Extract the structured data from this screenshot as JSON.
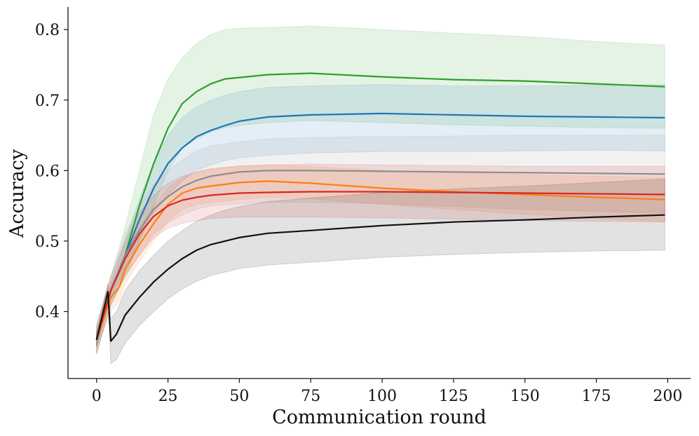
{
  "chart_data": {
    "type": "line",
    "title": "",
    "xlabel": "Communication round",
    "ylabel": "Accuracy",
    "xlim": [
      -10,
      208
    ],
    "ylim": [
      0.305,
      0.832
    ],
    "xticks": [
      0,
      25,
      50,
      75,
      100,
      125,
      150,
      175,
      200
    ],
    "yticks": [
      0.4,
      0.5,
      0.6,
      0.7,
      0.8
    ],
    "x_tick_labels": [
      "0",
      "25",
      "50",
      "75",
      "100",
      "125",
      "150",
      "175",
      "200"
    ],
    "y_tick_labels": [
      "0.4",
      "0.5",
      "0.6",
      "0.7",
      "0.8"
    ],
    "grid": false,
    "legend": "none",
    "series": [
      {
        "name": "green",
        "color": "#2ca02c",
        "x": [
          0,
          5,
          10,
          15,
          20,
          25,
          30,
          35,
          40,
          45,
          50,
          60,
          75,
          100,
          125,
          150,
          175,
          199
        ],
        "mean": [
          0.36,
          0.43,
          0.48,
          0.55,
          0.61,
          0.66,
          0.695,
          0.712,
          0.723,
          0.73,
          0.732,
          0.736,
          0.738,
          0.733,
          0.729,
          0.727,
          0.723,
          0.719
        ],
        "upper": [
          0.38,
          0.45,
          0.52,
          0.6,
          0.68,
          0.73,
          0.76,
          0.78,
          0.793,
          0.8,
          0.802,
          0.803,
          0.805,
          0.8,
          0.795,
          0.79,
          0.783,
          0.778
        ],
        "lower": [
          0.34,
          0.41,
          0.45,
          0.5,
          0.55,
          0.6,
          0.632,
          0.645,
          0.655,
          0.661,
          0.664,
          0.668,
          0.671,
          0.668,
          0.665,
          0.663,
          0.661,
          0.66
        ]
      },
      {
        "name": "blue",
        "color": "#1f77b4",
        "x": [
          0,
          5,
          10,
          15,
          20,
          25,
          30,
          35,
          40,
          45,
          50,
          60,
          75,
          100,
          125,
          150,
          175,
          199
        ],
        "mean": [
          0.36,
          0.43,
          0.48,
          0.53,
          0.575,
          0.61,
          0.632,
          0.648,
          0.657,
          0.664,
          0.67,
          0.676,
          0.679,
          0.681,
          0.679,
          0.677,
          0.676,
          0.675
        ],
        "upper": [
          0.37,
          0.44,
          0.5,
          0.56,
          0.61,
          0.65,
          0.675,
          0.69,
          0.7,
          0.707,
          0.712,
          0.718,
          0.72,
          0.722,
          0.72,
          0.72,
          0.721,
          0.722
        ],
        "lower": [
          0.35,
          0.42,
          0.46,
          0.5,
          0.54,
          0.565,
          0.585,
          0.6,
          0.608,
          0.614,
          0.618,
          0.622,
          0.625,
          0.627,
          0.627,
          0.628,
          0.629,
          0.628
        ]
      },
      {
        "name": "gray",
        "color": "#8c8c8c",
        "x": [
          0,
          5,
          10,
          15,
          20,
          25,
          30,
          35,
          40,
          50,
          60,
          75,
          100,
          125,
          150,
          175,
          199
        ],
        "mean": [
          0.36,
          0.43,
          0.48,
          0.515,
          0.545,
          0.563,
          0.577,
          0.586,
          0.592,
          0.598,
          0.6,
          0.6,
          0.599,
          0.598,
          0.597,
          0.596,
          0.595
        ],
        "upper": [
          0.38,
          0.45,
          0.51,
          0.55,
          0.58,
          0.6,
          0.615,
          0.628,
          0.635,
          0.641,
          0.645,
          0.647,
          0.648,
          0.649,
          0.65,
          0.65,
          0.65
        ],
        "lower": [
          0.34,
          0.41,
          0.45,
          0.48,
          0.51,
          0.525,
          0.537,
          0.545,
          0.55,
          0.553,
          0.555,
          0.555,
          0.553,
          0.549,
          0.545,
          0.542,
          0.54
        ]
      },
      {
        "name": "orange",
        "color": "#ff7f0e",
        "x": [
          0,
          5,
          8,
          10,
          15,
          20,
          25,
          30,
          35,
          40,
          50,
          60,
          75,
          100,
          125,
          150,
          175,
          199
        ],
        "mean": [
          0.36,
          0.42,
          0.435,
          0.46,
          0.495,
          0.525,
          0.552,
          0.568,
          0.575,
          0.578,
          0.583,
          0.585,
          0.582,
          0.575,
          0.57,
          0.566,
          0.562,
          0.559
        ],
        "upper": [
          0.37,
          0.44,
          0.455,
          0.48,
          0.52,
          0.55,
          0.575,
          0.59,
          0.598,
          0.603,
          0.607,
          0.608,
          0.606,
          0.6,
          0.597,
          0.594,
          0.592,
          0.59
        ],
        "lower": [
          0.35,
          0.4,
          0.415,
          0.44,
          0.47,
          0.5,
          0.528,
          0.545,
          0.552,
          0.555,
          0.559,
          0.562,
          0.56,
          0.552,
          0.545,
          0.538,
          0.532,
          0.528
        ]
      },
      {
        "name": "red",
        "color": "#d62728",
        "x": [
          0,
          5,
          10,
          15,
          20,
          25,
          30,
          35,
          40,
          50,
          60,
          75,
          100,
          125,
          150,
          175,
          199
        ],
        "mean": [
          0.36,
          0.43,
          0.475,
          0.51,
          0.535,
          0.55,
          0.558,
          0.562,
          0.565,
          0.568,
          0.569,
          0.57,
          0.57,
          0.569,
          0.568,
          0.567,
          0.566
        ],
        "upper": [
          0.38,
          0.45,
          0.5,
          0.54,
          0.565,
          0.582,
          0.592,
          0.598,
          0.602,
          0.606,
          0.608,
          0.609,
          0.608,
          0.607,
          0.606,
          0.606,
          0.606
        ],
        "lower": [
          0.34,
          0.41,
          0.45,
          0.48,
          0.505,
          0.518,
          0.525,
          0.529,
          0.532,
          0.534,
          0.534,
          0.534,
          0.533,
          0.531,
          0.529,
          0.528,
          0.527
        ]
      },
      {
        "name": "black",
        "color": "#111111",
        "x": [
          0,
          4,
          5,
          7,
          10,
          15,
          20,
          25,
          30,
          35,
          40,
          45,
          50,
          60,
          75,
          100,
          125,
          150,
          175,
          199
        ],
        "mean": [
          0.36,
          0.428,
          0.358,
          0.368,
          0.395,
          0.42,
          0.442,
          0.46,
          0.475,
          0.487,
          0.495,
          0.5,
          0.505,
          0.511,
          0.515,
          0.522,
          0.527,
          0.53,
          0.534,
          0.537
        ],
        "upper": [
          0.37,
          0.44,
          0.39,
          0.4,
          0.43,
          0.458,
          0.48,
          0.5,
          0.515,
          0.528,
          0.537,
          0.544,
          0.549,
          0.556,
          0.561,
          0.569,
          0.574,
          0.578,
          0.583,
          0.588
        ],
        "lower": [
          0.35,
          0.415,
          0.326,
          0.332,
          0.355,
          0.38,
          0.4,
          0.418,
          0.432,
          0.443,
          0.451,
          0.456,
          0.461,
          0.466,
          0.47,
          0.477,
          0.481,
          0.484,
          0.486,
          0.487
        ]
      }
    ]
  }
}
